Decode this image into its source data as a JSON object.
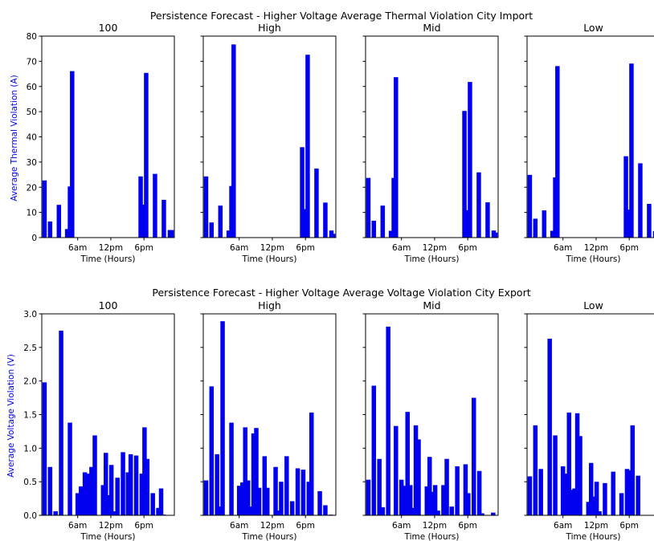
{
  "chart_data": [
    {
      "type": "bar",
      "title": "Persistence Forecast - Higher Voltage Average Thermal Violation City Import",
      "ylabel": "Average Thermal Violation (A)",
      "xlabel": "Time (Hours)",
      "ylim": [
        0,
        80
      ],
      "yticks": [
        "0",
        "10",
        "20",
        "30",
        "40",
        "50",
        "60",
        "70",
        "80"
      ],
      "xlim": [
        -0.5,
        23.5
      ],
      "xticks": [
        {
          "label": "6am",
          "x": 6
        },
        {
          "label": "12pm",
          "x": 12
        },
        {
          "label": "6pm",
          "x": 18
        }
      ],
      "bar_color": "#0000ee",
      "subplots": [
        {
          "title": "100",
          "x": [
            0,
            1,
            2.6,
            4.1,
            4.6,
            5,
            17.4,
            17.8,
            18.4,
            20,
            21.6,
            22.7,
            23
          ],
          "values": [
            22.7,
            6.4,
            13,
            3.4,
            20.3,
            66.1,
            24.3,
            13.1,
            65.4,
            25.3,
            15,
            3,
            3
          ]
        },
        {
          "title": "High",
          "x": [
            0,
            1,
            2.6,
            4.1,
            4.6,
            5,
            17.4,
            17.8,
            18.4,
            20,
            21.6,
            22.7,
            23
          ],
          "values": [
            24.3,
            6,
            12.7,
            2.8,
            20.5,
            76.7,
            35.9,
            11.3,
            72.6,
            27.4,
            13.9,
            2.8,
            1.5
          ]
        },
        {
          "title": "Mid",
          "x": [
            0,
            1,
            2.6,
            4.1,
            4.6,
            5,
            17.4,
            17.8,
            18.4,
            20,
            21.6,
            22.7,
            23
          ],
          "values": [
            23.7,
            6.7,
            12.7,
            2.7,
            23.7,
            63.7,
            50.3,
            10.9,
            61.8,
            25.9,
            14,
            2.8,
            2
          ]
        },
        {
          "title": "Low",
          "x": [
            0,
            1,
            2.6,
            4.1,
            4.6,
            5,
            17.4,
            17.8,
            18.4,
            20,
            21.6,
            22.7,
            23
          ],
          "values": [
            24.9,
            7.5,
            10.8,
            2.7,
            23.9,
            68.1,
            32.3,
            11.1,
            69.1,
            29.5,
            13.4,
            2.6,
            1.5
          ]
        }
      ]
    },
    {
      "type": "bar",
      "title": "Persistence Forecast - Higher Voltage Average Voltage Violation City Export",
      "ylabel": "Average Voltage Violation (V)",
      "xlabel": "Time (Hours)",
      "ylim": [
        0,
        3
      ],
      "yticks": [
        "0.0",
        "0.5",
        "1.0",
        "1.5",
        "2.0",
        "2.5",
        "3.0"
      ],
      "xlim": [
        -0.5,
        23.5
      ],
      "xticks": [
        {
          "label": "6am",
          "x": 6
        },
        {
          "label": "12pm",
          "x": 12
        },
        {
          "label": "6pm",
          "x": 18
        }
      ],
      "bar_color": "#0000ee",
      "subplots": [
        {
          "title": "100",
          "x": [
            0,
            1,
            2,
            3,
            4.6,
            6,
            6.6,
            7.3,
            7.8,
            8.5,
            9.1,
            10.6,
            11.1,
            11.6,
            12.1,
            12.6,
            13.2,
            14.2,
            15.1,
            15.6,
            16.6,
            17.6,
            18.1,
            18.6,
            19.6,
            20.6,
            21.1,
            21.6
          ],
          "values": [
            1.98,
            0.72,
            0.06,
            2.75,
            1.38,
            0.33,
            0.43,
            0.64,
            0.62,
            0.72,
            1.19,
            0.45,
            0.93,
            0.3,
            0.75,
            0.06,
            0.56,
            0.94,
            0.64,
            0.91,
            0.89,
            0.62,
            1.31,
            0.84,
            0.33,
            0.11,
            0.4,
            0.01
          ]
        },
        {
          "title": "High",
          "x": [
            0,
            1,
            2,
            2.6,
            3,
            4.6,
            6,
            6.6,
            7.1,
            7.6,
            8.1,
            8.6,
            9.1,
            9.6,
            10.6,
            11.1,
            12.6,
            13.1,
            13.6,
            14.6,
            15.6,
            16.6,
            17.6,
            18.6,
            19.1,
            20.6,
            21.6,
            22.6
          ],
          "values": [
            0.52,
            1.92,
            0.91,
            0.13,
            2.89,
            1.38,
            0.44,
            0.49,
            1.31,
            0.52,
            0.13,
            1.22,
            1.3,
            0.41,
            0.88,
            0.41,
            0.72,
            0.07,
            0.5,
            0.88,
            0.21,
            0.7,
            0.68,
            0.5,
            1.53,
            0.36,
            0.15,
            0.01
          ]
        },
        {
          "title": "Mid",
          "x": [
            0,
            1,
            2,
            2.6,
            3.6,
            5,
            6,
            6.6,
            7.1,
            7.6,
            8.1,
            8.6,
            9.1,
            10.6,
            11.1,
            11.6,
            12.1,
            12.6,
            13.6,
            14.2,
            15.1,
            16.1,
            17.6,
            18.1,
            19.1,
            20.1,
            20.6,
            22.6
          ],
          "values": [
            0.53,
            1.93,
            0.84,
            0.12,
            2.81,
            1.33,
            0.53,
            0.44,
            1.54,
            0.45,
            0.11,
            1.34,
            1.13,
            0.43,
            0.87,
            0.35,
            0.45,
            0.07,
            0.45,
            0.84,
            0.13,
            0.73,
            0.76,
            0.33,
            1.75,
            0.66,
            0.03,
            0.04
          ]
        },
        {
          "title": "Low",
          "x": [
            0,
            1,
            2,
            3.6,
            4.6,
            6,
            6.6,
            7.1,
            7.6,
            8.1,
            8.6,
            9.1,
            10.6,
            11.1,
            11.6,
            12.1,
            12.6,
            13.6,
            15.1,
            16.6,
            17.6,
            18.1,
            18.6,
            19.6
          ],
          "values": [
            0.58,
            1.34,
            0.69,
            2.63,
            1.19,
            0.73,
            0.62,
            1.53,
            0.38,
            0.4,
            1.52,
            1.18,
            0.2,
            0.78,
            0.28,
            0.5,
            0.06,
            0.48,
            0.65,
            0.33,
            0.69,
            0.67,
            1.34,
            0.59
          ]
        }
      ]
    }
  ]
}
